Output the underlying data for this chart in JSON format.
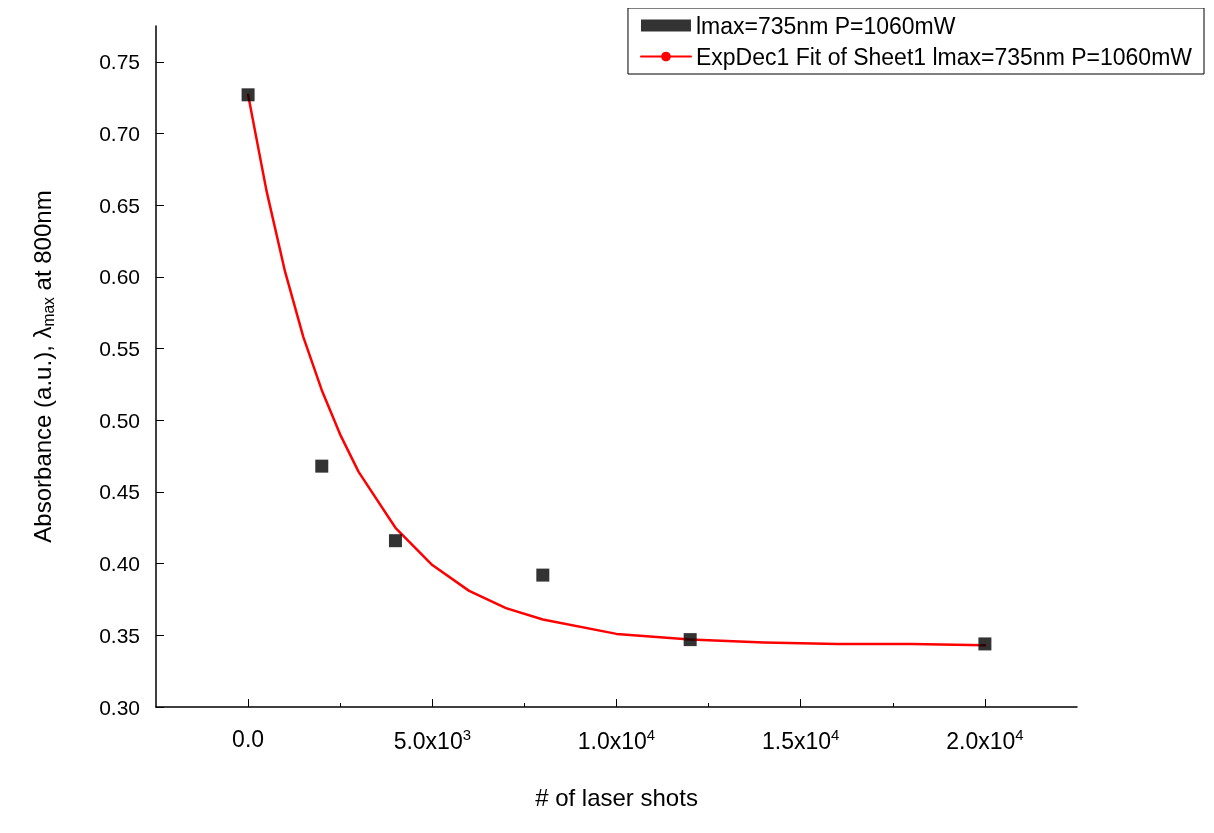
{
  "chart_data": {
    "type": "scatter",
    "xlabel": "# of laser shots",
    "ylabel": "Absorbance (a.u.), λ$_{max}$ at 800nm",
    "xlim": [
      -2500,
      22500
    ],
    "ylim": [
      0.3,
      0.775
    ],
    "xticks": [
      {
        "value": 0,
        "label": "0.0"
      },
      {
        "value": 5000,
        "label": "5.0x10$^{3}$"
      },
      {
        "value": 10000,
        "label": "1.0x10$^{4}$"
      },
      {
        "value": 15000,
        "label": "1.5x10$^{4}$"
      },
      {
        "value": 20000,
        "label": "2.0x10$^{4}$"
      }
    ],
    "yticks": [
      {
        "value": 0.3,
        "label": "0.30"
      },
      0.35,
      {
        "value": 0.4,
        "label": "0.40"
      },
      0.45,
      {
        "value": 0.5,
        "label": "0.50"
      },
      0.55,
      {
        "value": 0.6,
        "label": "0.60"
      },
      0.65,
      {
        "value": 0.7,
        "label": "0.70"
      },
      0.75
    ],
    "grid": false,
    "legend": "top right",
    "series": [
      {
        "name": "lmax=735nm P=1060mW",
        "type": "scatter",
        "marker": "square",
        "color": "#000000",
        "x": [
          0,
          2000,
          4000,
          8000,
          12000,
          20000
        ],
        "values": [
          0.727,
          0.468,
          0.416,
          0.392,
          0.347,
          0.344
        ]
      },
      {
        "name": "ExpDec1 Fit of Sheet1 lmax=735nm P=1060mW",
        "type": "line",
        "marker": "none",
        "line_style": "solid",
        "color": "#ff0000",
        "x": [
          0,
          500,
          1000,
          1500,
          2000,
          2500,
          3000,
          4000,
          5000,
          6000,
          7000,
          8000,
          10000,
          12000,
          14000,
          16000,
          18000,
          20000
        ],
        "values": [
          0.727,
          0.66,
          0.604,
          0.558,
          0.521,
          0.49,
          0.464,
          0.425,
          0.399,
          0.381,
          0.369,
          0.361,
          0.351,
          0.347,
          0.345,
          0.344,
          0.344,
          0.343
        ]
      }
    ]
  }
}
